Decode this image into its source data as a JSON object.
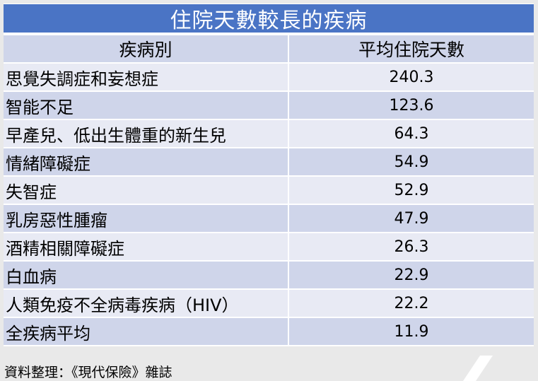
{
  "title": "住院天數較長的疾病",
  "headers": {
    "disease": "疾病別",
    "days": "平均住院天數"
  },
  "rows": [
    {
      "disease": "思覺失調症和妄想症",
      "days": "240.3"
    },
    {
      "disease": "智能不足",
      "days": "123.6"
    },
    {
      "disease": "早產兒、低出生體重的新生兒",
      "days": "64.3"
    },
    {
      "disease": "情緒障礙症",
      "days": "54.9"
    },
    {
      "disease": "失智症",
      "days": "52.9"
    },
    {
      "disease": "乳房惡性腫瘤",
      "days": "47.9"
    },
    {
      "disease": "酒精相關障礙症",
      "days": "26.3"
    },
    {
      "disease": "白血病",
      "days": "22.9"
    },
    {
      "disease": "人類免疫不全病毒疾病（HIV）",
      "days": "22.2"
    },
    {
      "disease": "全疾病平均",
      "days": "11.9"
    }
  ],
  "source": "資料整理：《現代保險》雜誌",
  "colors": {
    "title_bg": "#4a74c5",
    "row_light": "#e8eaf4",
    "row_dark": "#cfd5ea",
    "page_bg": "#e9e9e9"
  }
}
